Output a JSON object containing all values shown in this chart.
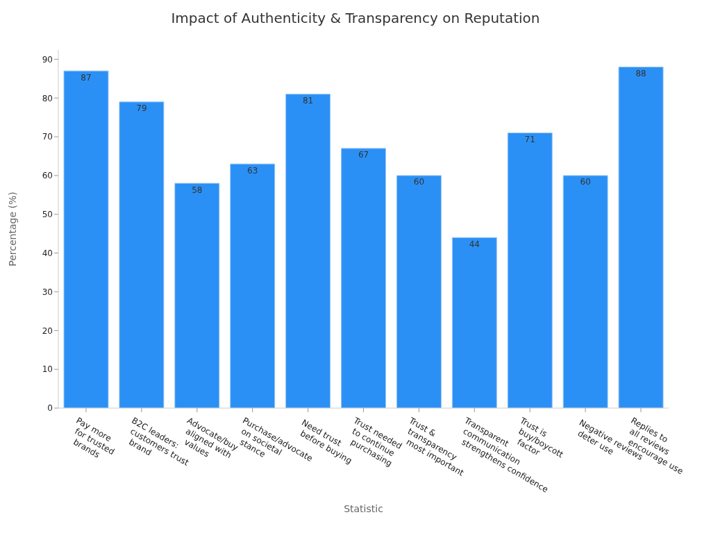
{
  "chart_data": {
    "type": "bar",
    "title": "Impact of Authenticity & Transparency on Reputation",
    "xlabel": "Statistic",
    "ylabel": "Percentage (%)",
    "categories": [
      "Pay more\nfor trusted\nbrands",
      "B2C leaders:\ncustomers trust\nbrand",
      "Advocate/buy\naligned with\nvalues",
      "Purchase/advocate\non societal\nstance",
      "Need trust\nbefore buying",
      "Trust needed\nto continue\npurchasing",
      "Trust &\ntransparency\nmost important",
      "Transparent\ncommunication\nstrengthens confidence",
      "Trust is\nbuy/boycott\nfactor",
      "Negative reviews\ndeter use",
      "Replies to\nall reviews\nencourage use"
    ],
    "values": [
      87,
      79,
      58,
      63,
      81,
      67,
      60,
      44,
      71,
      60,
      88
    ],
    "color": "#2b90f5",
    "ylim": [
      0,
      92.4
    ],
    "yticks": [
      0,
      10,
      20,
      30,
      40,
      50,
      60,
      70,
      80,
      90
    ],
    "data_labels": true
  }
}
